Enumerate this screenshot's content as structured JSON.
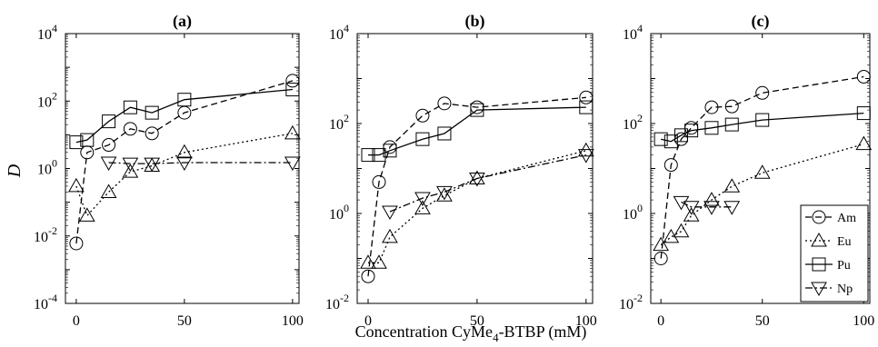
{
  "chart_data": {
    "type": "line",
    "ylabel": "D",
    "xlabel": "Concentration CyMe4-BTBP (mM)",
    "xlabel_main": "Concentration CyMe",
    "xlabel_sub": "4",
    "xlabel_rest": "-BTBP (mM)",
    "xticks": [
      "0",
      "50",
      "100"
    ],
    "legend": {
      "placement": "panel (c), bottom-right",
      "entries": [
        {
          "name": "Am",
          "marker": "circle",
          "line": "dashed"
        },
        {
          "name": "Eu",
          "marker": "triangle-up",
          "line": "dotted"
        },
        {
          "name": "Pu",
          "marker": "square",
          "line": "solid"
        },
        {
          "name": "Np",
          "marker": "triangle-down",
          "line": "dash-dot"
        }
      ]
    },
    "panels": [
      {
        "title": "(a)",
        "xlim": [
          -5,
          103
        ],
        "ylim": [
          0.0001,
          10000
        ],
        "yscale": "log",
        "yticks": [
          {
            "b": "10",
            "e": "-4"
          },
          {
            "b": "10",
            "e": "-2"
          },
          {
            "b": "10",
            "e": "0"
          },
          {
            "b": "10",
            "e": "2"
          },
          {
            "b": "10",
            "e": "4"
          }
        ],
        "series": [
          {
            "name": "Am",
            "x": [
              0,
              5,
              15,
              25,
              35,
              50,
              100
            ],
            "y": [
              0.006,
              3,
              5,
              15,
              11,
              45,
              400
            ]
          },
          {
            "name": "Eu",
            "x": [
              0,
              5,
              15,
              25,
              35,
              50,
              100
            ],
            "y": [
              0.3,
              0.04,
              0.2,
              0.8,
              1.2,
              3,
              11
            ]
          },
          {
            "name": "Pu",
            "x": [
              0,
              5,
              15,
              25,
              35,
              50,
              100
            ],
            "y": [
              6,
              7,
              25,
              65,
              45,
              110,
              220
            ]
          },
          {
            "name": "Np",
            "x": [
              15,
              25,
              35,
              50,
              100
            ],
            "y": [
              1.5,
              1.4,
              1.4,
              1.5,
              1.5
            ]
          }
        ]
      },
      {
        "title": "(b)",
        "xlim": [
          -5,
          103
        ],
        "ylim": [
          0.01,
          10000
        ],
        "yscale": "log",
        "yticks": [
          {
            "b": "10",
            "e": "-2"
          },
          {
            "b": "10",
            "e": "0"
          },
          {
            "b": "10",
            "e": "2"
          },
          {
            "b": "10",
            "e": "4"
          }
        ],
        "series": [
          {
            "name": "Am",
            "x": [
              0,
              5,
              10,
              25,
              35,
              50,
              100
            ],
            "y": [
              0.04,
              5,
              30,
              150,
              280,
              230,
              380
            ]
          },
          {
            "name": "Eu",
            "x": [
              0,
              5,
              10,
              25,
              35,
              50,
              100
            ],
            "y": [
              0.08,
              0.08,
              0.3,
              1.3,
              2.5,
              6,
              25
            ]
          },
          {
            "name": "Pu",
            "x": [
              0,
              5,
              10,
              25,
              35,
              50,
              100
            ],
            "y": [
              20,
              20,
              25,
              45,
              60,
              200,
              230
            ]
          },
          {
            "name": "Np",
            "x": [
              10,
              25,
              35,
              50,
              100
            ],
            "y": [
              1.1,
              2.2,
              3,
              6,
              20
            ]
          }
        ]
      },
      {
        "title": "(c)",
        "xlim": [
          -5,
          103
        ],
        "ylim": [
          0.01,
          10000
        ],
        "yscale": "log",
        "yticks": [
          {
            "b": "10",
            "e": "-2"
          },
          {
            "b": "10",
            "e": "0"
          },
          {
            "b": "10",
            "e": "2"
          },
          {
            "b": "10",
            "e": "4"
          }
        ],
        "series": [
          {
            "name": "Am",
            "x": [
              0,
              5,
              10,
              15,
              25,
              35,
              50,
              100
            ],
            "y": [
              0.1,
              12,
              45,
              80,
              230,
              240,
              480,
              1100
            ]
          },
          {
            "name": "Eu",
            "x": [
              0,
              5,
              10,
              15,
              25,
              35,
              50,
              100
            ],
            "y": [
              0.2,
              0.3,
              0.4,
              0.9,
              2,
              4,
              8,
              35
            ]
          },
          {
            "name": "Pu",
            "x": [
              0,
              5,
              10,
              15,
              25,
              35,
              50,
              100
            ],
            "y": [
              45,
              40,
              55,
              70,
              80,
              95,
              120,
              170
            ]
          },
          {
            "name": "Np",
            "x": [
              10,
              15,
              25,
              35
            ],
            "y": [
              1.8,
              1.4,
              1.4,
              1.4
            ]
          }
        ]
      }
    ]
  }
}
